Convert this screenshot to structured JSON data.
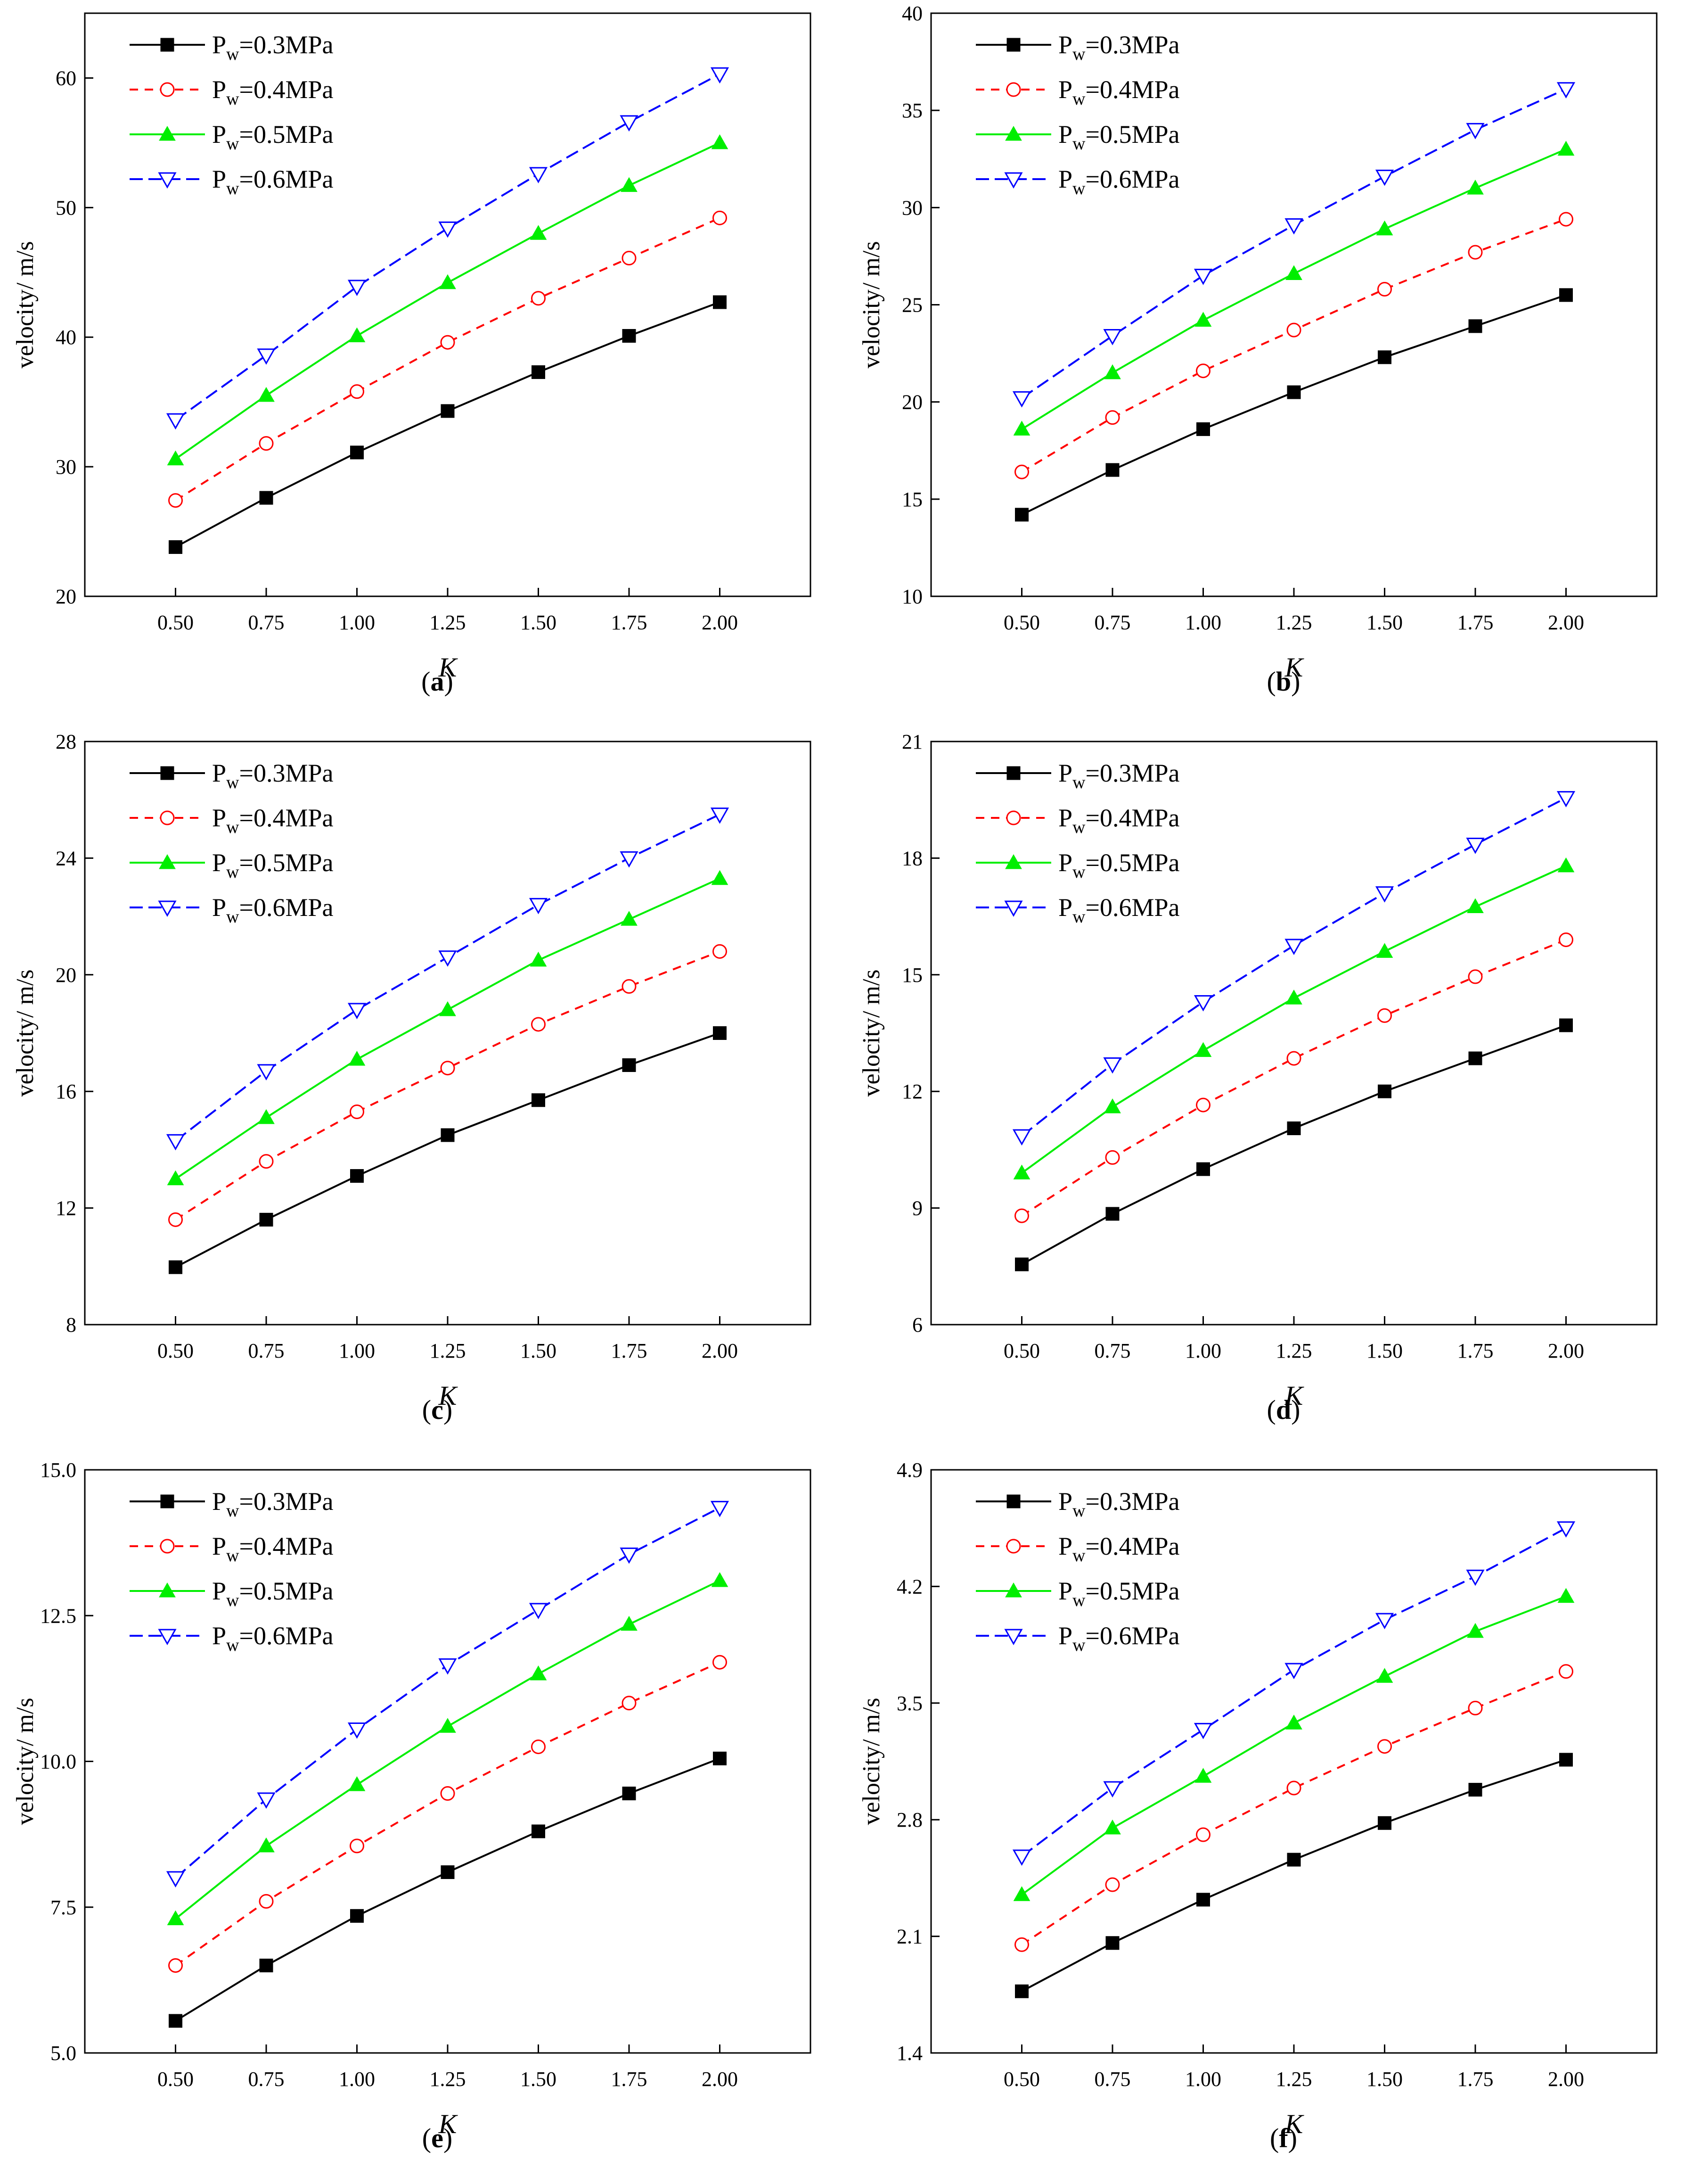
{
  "chart_data": [
    {
      "type": "line",
      "caption": "a",
      "title": "",
      "xlabel": "K",
      "ylabel": "velocity/ m/s",
      "ylim": [
        20,
        65
      ],
      "xticks": [
        "0.50",
        "0.75",
        "1.00",
        "1.25",
        "1.50",
        "1.75",
        "2.00"
      ],
      "yticks": [
        "20",
        "30",
        "40",
        "50",
        "60"
      ],
      "legend_position": "top-left",
      "x": [
        0.5,
        0.75,
        1.0,
        1.25,
        1.5,
        1.75,
        2.0
      ],
      "series": [
        {
          "name": "Pw=0.3MPa",
          "values": [
            23.8,
            27.6,
            31.1,
            34.3,
            37.3,
            40.1,
            42.7
          ]
        },
        {
          "name": "Pw=0.4MPa",
          "values": [
            27.4,
            31.8,
            35.8,
            39.6,
            43.0,
            46.1,
            49.2
          ]
        },
        {
          "name": "Pw=0.5MPa",
          "values": [
            30.6,
            35.5,
            40.1,
            44.2,
            48.0,
            51.7,
            55.0
          ]
        },
        {
          "name": "Pw=0.6MPa",
          "values": [
            33.6,
            38.6,
            43.9,
            48.4,
            52.6,
            56.6,
            60.3
          ]
        }
      ]
    },
    {
      "type": "line",
      "caption": "b",
      "title": "",
      "xlabel": "K",
      "ylabel": "velocity/ m/s",
      "ylim": [
        10,
        40
      ],
      "xticks": [
        "0.50",
        "0.75",
        "1.00",
        "1.25",
        "1.50",
        "1.75",
        "2.00"
      ],
      "yticks": [
        "10",
        "15",
        "20",
        "25",
        "30",
        "35",
        "40"
      ],
      "legend_position": "top-left",
      "x": [
        0.5,
        0.75,
        1.0,
        1.25,
        1.5,
        1.75,
        2.0
      ],
      "series": [
        {
          "name": "Pw=0.3MPa",
          "values": [
            14.2,
            16.5,
            18.6,
            20.5,
            22.3,
            23.9,
            25.5
          ]
        },
        {
          "name": "Pw=0.4MPa",
          "values": [
            16.4,
            19.2,
            21.6,
            23.7,
            25.8,
            27.7,
            29.4
          ]
        },
        {
          "name": "Pw=0.5MPa",
          "values": [
            18.6,
            21.5,
            24.2,
            26.6,
            28.9,
            31.0,
            33.0
          ]
        },
        {
          "name": "Pw=0.6MPa",
          "values": [
            20.2,
            23.4,
            26.5,
            29.1,
            31.6,
            34.0,
            36.1
          ]
        }
      ]
    },
    {
      "type": "line",
      "caption": "c",
      "title": "",
      "xlabel": "K",
      "ylabel": "velocity/ m/s",
      "ylim": [
        8,
        28
      ],
      "xticks": [
        "0.50",
        "0.75",
        "1.00",
        "1.25",
        "1.50",
        "1.75",
        "2.00"
      ],
      "yticks": [
        "8",
        "12",
        "16",
        "20",
        "24",
        "28"
      ],
      "legend_position": "top-left",
      "x": [
        0.5,
        0.75,
        1.0,
        1.25,
        1.5,
        1.75,
        2.0
      ],
      "series": [
        {
          "name": "Pw=0.3MPa",
          "values": [
            9.97,
            11.6,
            13.1,
            14.5,
            15.7,
            16.9,
            18.0
          ]
        },
        {
          "name": "Pw=0.4MPa",
          "values": [
            11.6,
            13.6,
            15.3,
            16.8,
            18.3,
            19.6,
            20.8
          ]
        },
        {
          "name": "Pw=0.5MPa",
          "values": [
            13.0,
            15.1,
            17.1,
            18.8,
            20.5,
            21.9,
            23.3
          ]
        },
        {
          "name": "Pw=0.6MPa",
          "values": [
            14.3,
            16.7,
            18.8,
            20.6,
            22.4,
            24.0,
            25.5
          ]
        }
      ]
    },
    {
      "type": "line",
      "caption": "d",
      "title": "",
      "xlabel": "K",
      "ylabel": "velocity/ m/s",
      "ylim": [
        6,
        21
      ],
      "xticks": [
        "0.50",
        "0.75",
        "1.00",
        "1.25",
        "1.50",
        "1.75",
        "2.00"
      ],
      "yticks": [
        "6",
        "9",
        "12",
        "15",
        "18",
        "21"
      ],
      "legend_position": "top-left",
      "x": [
        0.5,
        0.75,
        1.0,
        1.25,
        1.5,
        1.75,
        2.0
      ],
      "series": [
        {
          "name": "Pw=0.3MPa",
          "values": [
            7.55,
            8.85,
            10.0,
            11.05,
            12.0,
            12.85,
            13.7
          ]
        },
        {
          "name": "Pw=0.4MPa",
          "values": [
            8.8,
            10.3,
            11.65,
            12.85,
            13.95,
            14.95,
            15.9
          ]
        },
        {
          "name": "Pw=0.5MPa",
          "values": [
            9.9,
            11.6,
            13.05,
            14.4,
            15.6,
            16.75,
            17.8
          ]
        },
        {
          "name": "Pw=0.6MPa",
          "values": [
            10.85,
            12.7,
            14.3,
            15.75,
            17.1,
            18.35,
            19.55
          ]
        }
      ]
    },
    {
      "type": "line",
      "caption": "e",
      "title": "",
      "xlabel": "K",
      "ylabel": "velocity/ m/s",
      "ylim": [
        5.0,
        15.0
      ],
      "xticks": [
        "0.50",
        "0.75",
        "1.00",
        "1.25",
        "1.50",
        "1.75",
        "2.00"
      ],
      "yticks": [
        "5.0",
        "7.5",
        "10.0",
        "12.5",
        "15.0"
      ],
      "legend_position": "top-left",
      "x": [
        0.5,
        0.75,
        1.0,
        1.25,
        1.5,
        1.75,
        2.0
      ],
      "series": [
        {
          "name": "Pw=0.3MPa",
          "values": [
            5.55,
            6.5,
            7.35,
            8.1,
            8.8,
            9.45,
            10.05
          ]
        },
        {
          "name": "Pw=0.4MPa",
          "values": [
            6.5,
            7.6,
            8.55,
            9.45,
            10.25,
            11.0,
            11.7
          ]
        },
        {
          "name": "Pw=0.5MPa",
          "values": [
            7.3,
            8.55,
            9.6,
            10.6,
            11.5,
            12.35,
            13.1
          ]
        },
        {
          "name": "Pw=0.6MPa",
          "values": [
            8.0,
            9.35,
            10.55,
            11.65,
            12.6,
            13.55,
            14.35
          ]
        }
      ]
    },
    {
      "type": "line",
      "caption": "f",
      "title": "",
      "xlabel": "K",
      "ylabel": "velocity/ m/s",
      "ylim": [
        1.4,
        4.9
      ],
      "xticks": [
        "0.50",
        "0.75",
        "1.00",
        "1.25",
        "1.50",
        "1.75",
        "2.00"
      ],
      "yticks": [
        "1.4",
        "2.1",
        "2.8",
        "3.5",
        "4.2",
        "4.9"
      ],
      "legend_position": "top-left",
      "x": [
        0.5,
        0.75,
        1.0,
        1.25,
        1.5,
        1.75,
        2.0
      ],
      "series": [
        {
          "name": "Pw=0.3MPa",
          "values": [
            1.77,
            2.06,
            2.32,
            2.56,
            2.78,
            2.98,
            3.16
          ]
        },
        {
          "name": "Pw=0.4MPa",
          "values": [
            2.05,
            2.41,
            2.71,
            2.99,
            3.24,
            3.47,
            3.69
          ]
        },
        {
          "name": "Pw=0.5MPa",
          "values": [
            2.35,
            2.75,
            3.06,
            3.38,
            3.66,
            3.93,
            4.14
          ]
        },
        {
          "name": "Pw=0.6MPa",
          "values": [
            2.58,
            2.99,
            3.34,
            3.7,
            4.0,
            4.26,
            4.55
          ]
        }
      ]
    }
  ],
  "legend_parts": [
    {
      "base": "P",
      "sub": "w",
      "rest": "=0.3MPa"
    },
    {
      "base": "P",
      "sub": "w",
      "rest": "=0.4MPa"
    },
    {
      "base": "P",
      "sub": "w",
      "rest": "=0.5MPa"
    },
    {
      "base": "P",
      "sub": "w",
      "rest": "=0.6MPa"
    }
  ],
  "styles": [
    {
      "color": "#000000",
      "dash": "",
      "marker": "square"
    },
    {
      "color": "#ff0000",
      "dash": "18,14",
      "marker": "circle"
    },
    {
      "color": "#00ee00",
      "dash": "",
      "marker": "triangle-up"
    },
    {
      "color": "#0000ff",
      "dash": "28,12",
      "marker": "triangle-down"
    }
  ]
}
